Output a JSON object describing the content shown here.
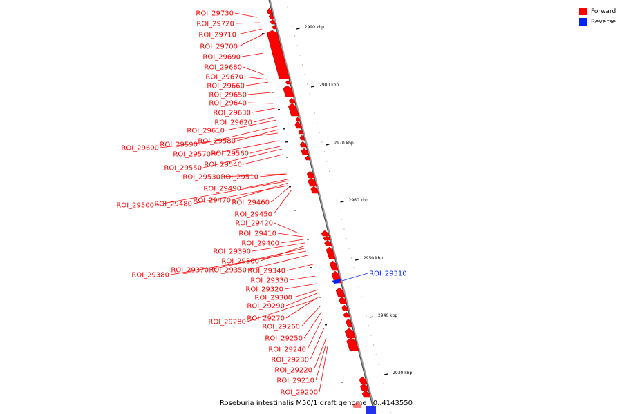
{
  "legend": {
    "forward_label": "Forward",
    "reverse_label": "Reverse",
    "forward_color": "#ff0000",
    "reverse_color": "#0022ff"
  },
  "caption": {
    "genome": "Roseburia intestinalis M50/1 draft genome",
    "range": "0..4143550"
  },
  "scale_ticks": [
    "2990 kbp",
    "2980 kbp",
    "2970 kbp",
    "2960 kbp",
    "2950 kbp",
    "2940 kbp",
    "2930 kbp"
  ],
  "features": [
    {
      "name": "ROI_29730",
      "strand": "forward"
    },
    {
      "name": "ROI_29720",
      "strand": "forward"
    },
    {
      "name": "ROI_29710",
      "strand": "forward"
    },
    {
      "name": "ROI_29700",
      "strand": "forward"
    },
    {
      "name": "ROI_29690",
      "strand": "forward"
    },
    {
      "name": "ROI_29680",
      "strand": "forward"
    },
    {
      "name": "ROI_29670",
      "strand": "forward"
    },
    {
      "name": "ROI_29660",
      "strand": "forward"
    },
    {
      "name": "ROI_29650",
      "strand": "forward"
    },
    {
      "name": "ROI_29640",
      "strand": "forward"
    },
    {
      "name": "ROI_29630",
      "strand": "forward"
    },
    {
      "name": "ROI_29620",
      "strand": "forward"
    },
    {
      "name": "ROI_29610",
      "strand": "forward"
    },
    {
      "name": "ROI_29590",
      "strand": "forward"
    },
    {
      "name": "ROI_29580",
      "strand": "forward"
    },
    {
      "name": "ROI_29600",
      "strand": "forward"
    },
    {
      "name": "ROI_29570",
      "strand": "forward"
    },
    {
      "name": "ROI_29560",
      "strand": "forward"
    },
    {
      "name": "ROI_29550",
      "strand": "forward"
    },
    {
      "name": "ROI_29540",
      "strand": "forward"
    },
    {
      "name": "ROI_29530",
      "strand": "forward"
    },
    {
      "name": "ROI_29510",
      "strand": "forward"
    },
    {
      "name": "ROI_29490",
      "strand": "forward"
    },
    {
      "name": "ROI_29470",
      "strand": "forward"
    },
    {
      "name": "ROI_29460",
      "strand": "forward"
    },
    {
      "name": "ROI_29500",
      "strand": "forward"
    },
    {
      "name": "ROI_29480",
      "strand": "forward"
    },
    {
      "name": "ROI_29450",
      "strand": "forward"
    },
    {
      "name": "ROI_29420",
      "strand": "forward"
    },
    {
      "name": "ROI_29410",
      "strand": "forward"
    },
    {
      "name": "ROI_29400",
      "strand": "forward"
    },
    {
      "name": "ROI_29390",
      "strand": "forward"
    },
    {
      "name": "ROI_29360",
      "strand": "forward"
    },
    {
      "name": "ROI_29370",
      "strand": "forward"
    },
    {
      "name": "ROI_29350",
      "strand": "forward"
    },
    {
      "name": "ROI_29340",
      "strand": "forward"
    },
    {
      "name": "ROI_29380",
      "strand": "forward"
    },
    {
      "name": "ROI_29330",
      "strand": "forward"
    },
    {
      "name": "ROI_29320",
      "strand": "forward"
    },
    {
      "name": "ROI_29300",
      "strand": "forward"
    },
    {
      "name": "ROI_29290",
      "strand": "forward"
    },
    {
      "name": "ROI_29270",
      "strand": "forward"
    },
    {
      "name": "ROI_29280",
      "strand": "forward"
    },
    {
      "name": "ROI_29260",
      "strand": "forward"
    },
    {
      "name": "ROI_29250",
      "strand": "forward"
    },
    {
      "name": "ROI_29240",
      "strand": "forward"
    },
    {
      "name": "ROI_29230",
      "strand": "forward"
    },
    {
      "name": "ROI_29220",
      "strand": "forward"
    },
    {
      "name": "ROI_29210",
      "strand": "forward"
    },
    {
      "name": "ROI_29200",
      "strand": "forward"
    },
    {
      "name": "ROI_29310",
      "strand": "reverse"
    }
  ]
}
